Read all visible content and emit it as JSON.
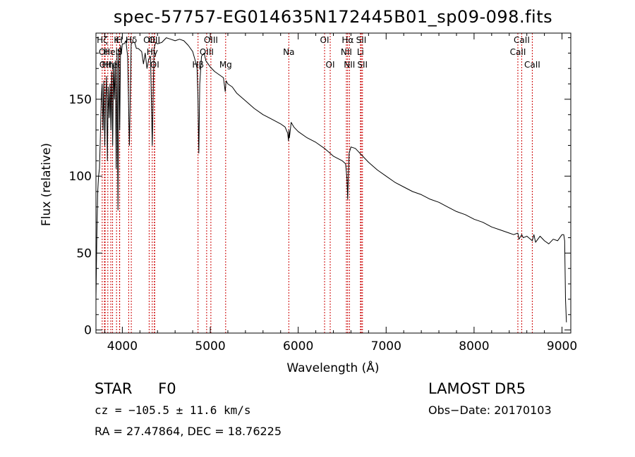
{
  "title": "spec-57757-EG014635N172445B01_sp09-098.fits",
  "info": {
    "class_label": "STAR",
    "subclass_label": "F0",
    "survey": "LAMOST DR5",
    "cz": "cz = −105.5 ± 11.6 km/s",
    "obs_date": "Obs−Date: 20170103",
    "radec": "RA =  27.47864, DEC =  18.76225"
  },
  "chart_data": {
    "type": "line",
    "title": "spec-57757-EG014635N172445B01_sp09-098.fits",
    "xlabel": "Wavelength (Å)",
    "ylabel": "Flux (relative)",
    "xlim": [
      3700,
      9100
    ],
    "ylim": [
      -2,
      193
    ],
    "xticks": [
      4000,
      5000,
      6000,
      7000,
      8000,
      9000
    ],
    "yticks": [
      0,
      50,
      100,
      150
    ],
    "grid": false,
    "line_color": "#000000",
    "marker_color": "#cc0000",
    "series": [
      {
        "x": [
          3700,
          3710,
          3720,
          3730,
          3740,
          3750,
          3760,
          3770,
          3780,
          3790,
          3800,
          3810,
          3820,
          3830,
          3840,
          3850,
          3860,
          3870,
          3880,
          3890,
          3900,
          3910,
          3920,
          3930,
          3940,
          3950,
          3960,
          3970,
          3980,
          3990,
          4000,
          4020,
          4040,
          4060,
          4080,
          4100,
          4120,
          4140,
          4160,
          4180,
          4200,
          4220,
          4240,
          4260,
          4280,
          4300,
          4320,
          4340,
          4360,
          4380,
          4400,
          4450,
          4500,
          4550,
          4600,
          4650,
          4700,
          4750,
          4800,
          4830,
          4850,
          4860,
          4870,
          4880,
          4900,
          4930,
          4950,
          5000,
          5050,
          5100,
          5150,
          5170,
          5180,
          5200,
          5250,
          5300,
          5400,
          5500,
          5600,
          5700,
          5800,
          5850,
          5880,
          5890,
          5895,
          5900,
          5920,
          5950,
          6000,
          6100,
          6200,
          6300,
          6400,
          6500,
          6540,
          6555,
          6563,
          6570,
          6580,
          6600,
          6650,
          6700,
          6800,
          6900,
          7000,
          7100,
          7200,
          7300,
          7400,
          7500,
          7600,
          7700,
          7800,
          7900,
          8000,
          8100,
          8200,
          8300,
          8400,
          8450,
          8498,
          8510,
          8542,
          8560,
          8600,
          8662,
          8680,
          8700,
          8750,
          8800,
          8850,
          8900,
          8950,
          9000,
          9020,
          9030,
          9040,
          9050
        ],
        "y": [
          20,
          60,
          90,
          100,
          105,
          125,
          150,
          160,
          130,
          162,
          120,
          150,
          165,
          110,
          158,
          138,
          160,
          130,
          168,
          120,
          172,
          150,
          175,
          105,
          180,
          78,
          182,
          130,
          185,
          180,
          186,
          186,
          188,
          178,
          120,
          186,
          187,
          187,
          183,
          183,
          182,
          181,
          173,
          180,
          170,
          176,
          178,
          120,
          183,
          187,
          186,
          187,
          190,
          189,
          188,
          189,
          188,
          185,
          181,
          175,
          170,
          150,
          115,
          160,
          178,
          180,
          175,
          171,
          168,
          166,
          164,
          155,
          162,
          160,
          158,
          154,
          149,
          144,
          140,
          137,
          134,
          132,
          128,
          123,
          130,
          125,
          135,
          132,
          129,
          125,
          122,
          118,
          113,
          110,
          108,
          98,
          85,
          100,
          115,
          119,
          118,
          115,
          109,
          104,
          100,
          96,
          93,
          90,
          88,
          85,
          83,
          80,
          77,
          75,
          72,
          70,
          67,
          65,
          63,
          62,
          63,
          59,
          62,
          60,
          61,
          58,
          62,
          57,
          61,
          58,
          56,
          59,
          58,
          62,
          62,
          58,
          20,
          5
        ]
      }
    ],
    "markers": [
      {
        "x": 3771,
        "label": "Hζ",
        "row": 0
      },
      {
        "x": 3797,
        "label": "OII",
        "row": 1
      },
      {
        "x": 3804,
        "label": "OII",
        "row": 2
      },
      {
        "x": 3835,
        "label": "Hη",
        "row": 2
      },
      {
        "x": 3869,
        "label": "Hel",
        "row": 1
      },
      {
        "x": 3889,
        "label": "Hel",
        "row": 2
      },
      {
        "x": 3934,
        "label": "K",
        "row": 0
      },
      {
        "x": 3968,
        "label": "H",
        "row": 0
      },
      {
        "x": 3970,
        "label": "S",
        "row": 1
      },
      {
        "x": 4072,
        "label": "H",
        "row": 0
      },
      {
        "x": 4102,
        "label": "Hδ",
        "row": 0
      },
      {
        "x": 4305,
        "label": "OII",
        "row": 0
      },
      {
        "x": 4340,
        "label": "Hγ",
        "row": 1
      },
      {
        "x": 4364,
        "label": "OII",
        "row": 0
      },
      {
        "x": 4368,
        "label": "OI",
        "row": 2
      },
      {
        "x": 4861,
        "label": "Hβ",
        "row": 2
      },
      {
        "x": 4959,
        "label": "OIII",
        "row": 1
      },
      {
        "x": 5007,
        "label": "OIII",
        "row": 0
      },
      {
        "x": 5175,
        "label": "Mg",
        "row": 2
      },
      {
        "x": 5893,
        "label": "Na",
        "row": 1
      },
      {
        "x": 6300,
        "label": "OI",
        "row": 0
      },
      {
        "x": 6364,
        "label": "OI",
        "row": 2
      },
      {
        "x": 6548,
        "label": "NII",
        "row": 1
      },
      {
        "x": 6563,
        "label": "Hα",
        "row": 0
      },
      {
        "x": 6583,
        "label": "NII",
        "row": 2
      },
      {
        "x": 6708,
        "label": "Li",
        "row": 1
      },
      {
        "x": 6717,
        "label": "SII",
        "row": 0
      },
      {
        "x": 6731,
        "label": "SII",
        "row": 2
      },
      {
        "x": 8498,
        "label": "CaII",
        "row": 1
      },
      {
        "x": 8542,
        "label": "CaII",
        "row": 0
      },
      {
        "x": 8662,
        "label": "CaII",
        "row": 2
      }
    ]
  }
}
